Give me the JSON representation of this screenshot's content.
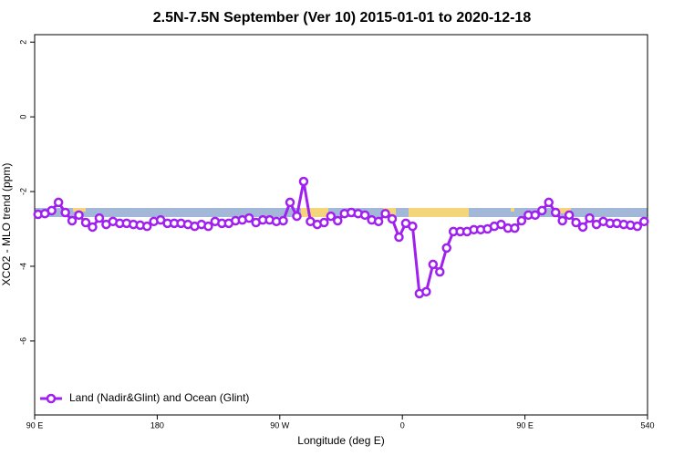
{
  "chart_data": {
    "type": "line",
    "title": "2.5N-7.5N September (Ver 10)   2015-01-01 to 2020-12-18",
    "x_label": "Longitude (deg E)",
    "y_label": "XCO2 - MLO trend (ppm)",
    "xlim": [
      90,
      540
    ],
    "xticks": [
      {
        "value": 90,
        "label": "90 E"
      },
      180,
      {
        "value": 270,
        "label": "90 W"
      },
      {
        "value": 360,
        "label": "0"
      },
      {
        "value": 450,
        "label": "90 E"
      },
      540
    ],
    "ylim": [
      -7.98,
      2.2
    ],
    "yticks": [
      -6,
      -4,
      -2,
      0,
      2
    ],
    "legend_position": "bottom-left",
    "x": [
      92.5,
      97.5,
      102.5,
      107.5,
      112.5,
      117.5,
      122.5,
      127.5,
      132.5,
      137.5,
      142.5,
      147.5,
      152.5,
      157.5,
      162.5,
      167.5,
      172.5,
      177.5,
      182.5,
      187.5,
      192.5,
      197.5,
      202.5,
      207.5,
      212.5,
      217.5,
      222.5,
      227.5,
      232.5,
      237.5,
      242.5,
      247.5,
      252.5,
      257.5,
      262.5,
      267.5,
      272.5,
      277.5,
      282.5,
      287.5,
      292.5,
      297.5,
      302.5,
      307.5,
      312.5,
      317.5,
      322.5,
      327.5,
      332.5,
      337.5,
      342.5,
      347.5,
      352.5,
      357.5,
      362.5,
      367.5,
      372.5,
      377.5,
      382.5,
      387.5,
      392.5,
      397.5,
      402.5,
      407.5,
      412.5,
      417.5,
      422.5,
      427.5,
      432.5,
      437.5,
      442.5,
      447.5,
      452.5,
      457.5,
      462.5,
      467.5,
      472.5,
      477.5,
      482.5,
      487.5,
      492.5,
      497.5,
      502.5,
      507.5,
      512.5,
      517.5,
      522.5,
      527.5,
      532.5,
      537.5
    ],
    "series": [
      {
        "name": "Land (Nadir&Glint) and Ocean (Glint)",
        "color": "#a020f0",
        "values": [
          -2.61,
          -2.59,
          -2.51,
          -2.29,
          -2.56,
          -2.78,
          -2.63,
          -2.83,
          -2.95,
          -2.71,
          -2.88,
          -2.8,
          -2.85,
          -2.85,
          -2.88,
          -2.9,
          -2.93,
          -2.8,
          -2.76,
          -2.85,
          -2.85,
          -2.85,
          -2.88,
          -2.93,
          -2.88,
          -2.93,
          -2.8,
          -2.85,
          -2.85,
          -2.78,
          -2.76,
          -2.71,
          -2.83,
          -2.76,
          -2.76,
          -2.8,
          -2.78,
          -2.29,
          -2.66,
          -1.73,
          -2.8,
          -2.88,
          -2.83,
          -2.66,
          -2.78,
          -2.59,
          -2.56,
          -2.59,
          -2.63,
          -2.76,
          -2.8,
          -2.59,
          -2.73,
          -3.22,
          -2.85,
          -2.93,
          -4.73,
          -4.68,
          -3.95,
          -4.15,
          -3.51,
          -3.07,
          -3.07,
          -3.07,
          -3.02,
          -3.02,
          -3.0,
          -2.93,
          -2.88,
          -2.98,
          -2.98,
          -2.78,
          -2.63,
          -2.63,
          -2.51,
          -2.29,
          -2.56,
          -2.78,
          -2.63,
          -2.83,
          -2.95,
          -2.71,
          -2.88,
          -2.8,
          -2.85,
          -2.85,
          -2.88,
          -2.9,
          -2.93,
          -2.8
        ]
      }
    ]
  }
}
